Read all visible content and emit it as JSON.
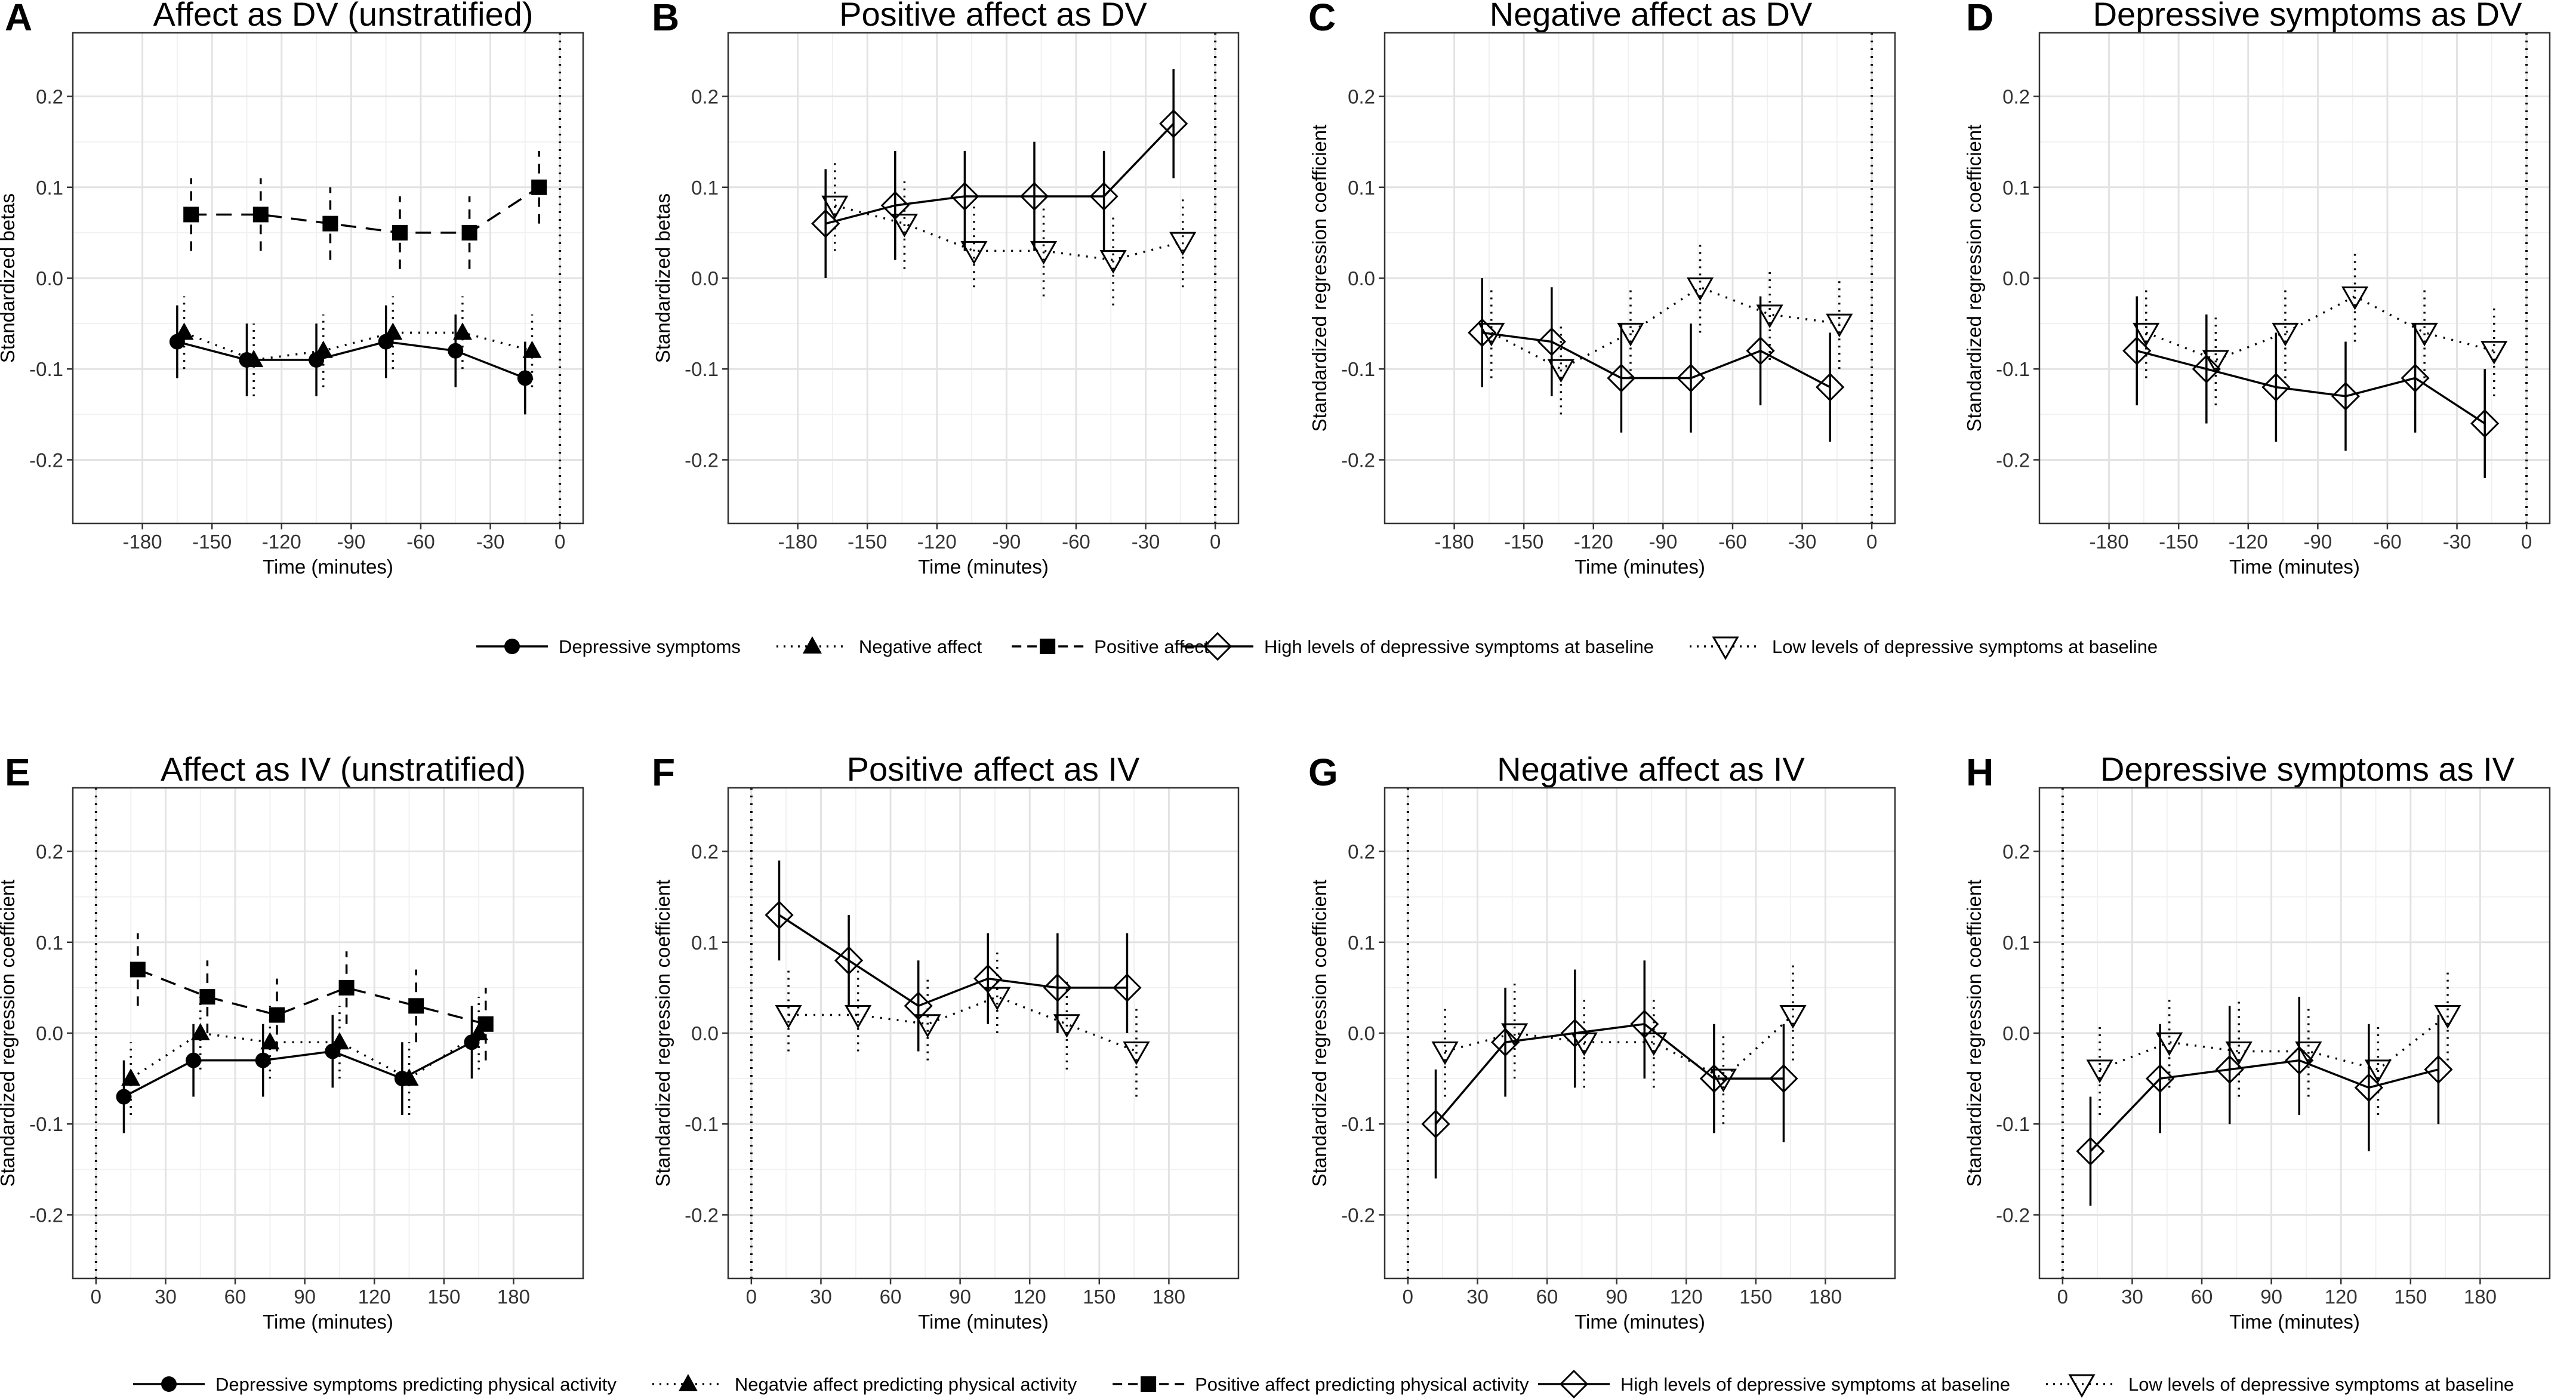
{
  "legends": {
    "top_affect": [
      {
        "label": "Depressive symptoms",
        "marker": "circle",
        "line": "solid"
      },
      {
        "label": "Negative affect",
        "marker": "triangle",
        "line": "dotted"
      },
      {
        "label": "Positive affect",
        "marker": "square",
        "line": "dashed"
      }
    ],
    "top_group": [
      {
        "label": "High levels of depressive symptoms at baseline",
        "marker": "diamond",
        "line": "solid"
      },
      {
        "label": "Low levels of depressive symptoms at baseline",
        "marker": "down-triangle",
        "line": "dotted"
      }
    ],
    "bottom_affect": [
      {
        "label": "Depressive symptoms predicting physical activity",
        "marker": "circle",
        "line": "solid"
      },
      {
        "label": "Negatvie affect predicting physical activity",
        "marker": "triangle",
        "line": "dotted"
      },
      {
        "label": "Positive affect predicting physical activity",
        "marker": "square",
        "line": "dashed"
      }
    ],
    "bottom_group": [
      {
        "label": "High levels of depressive symptoms at baseline",
        "marker": "diamond",
        "line": "solid"
      },
      {
        "label": "Low levels of depressive symptoms at baseline",
        "marker": "down-triangle",
        "line": "dotted"
      }
    ]
  },
  "chart_data": [
    {
      "panel": "A",
      "type": "line",
      "title": "Affect as DV (unstratified)",
      "xlabel": "Time (minutes)",
      "ylabel": "Standardized betas",
      "xlim": [
        -210,
        10
      ],
      "ylim": [
        -0.27,
        0.27
      ],
      "xticks": [
        -180,
        -150,
        -120,
        -90,
        -60,
        -30,
        0
      ],
      "yticks": [
        -0.2,
        -0.1,
        0.0,
        0.1,
        0.2
      ],
      "tick_labels_y": [
        "-0.2",
        "-0.1",
        "0.0",
        "0.1",
        "0.2"
      ],
      "vline": 0,
      "series": [
        {
          "name": "Depressive symptoms",
          "marker": "circle",
          "line": "solid",
          "x": [
            -165,
            -135,
            -105,
            -75,
            -45,
            -15
          ],
          "y": [
            -0.07,
            -0.09,
            -0.09,
            -0.07,
            -0.08,
            -0.11
          ],
          "lower": [
            -0.11,
            -0.13,
            -0.13,
            -0.11,
            -0.12,
            -0.15
          ],
          "upper": [
            -0.03,
            -0.05,
            -0.05,
            -0.03,
            -0.04,
            -0.07
          ]
        },
        {
          "name": "Negative affect",
          "marker": "triangle",
          "line": "dotted",
          "x": [
            -162,
            -132,
            -102,
            -72,
            -42,
            -12
          ],
          "y": [
            -0.06,
            -0.09,
            -0.08,
            -0.06,
            -0.06,
            -0.08
          ],
          "lower": [
            -0.1,
            -0.13,
            -0.12,
            -0.1,
            -0.1,
            -0.12
          ],
          "upper": [
            -0.02,
            -0.05,
            -0.04,
            -0.02,
            -0.02,
            -0.04
          ]
        },
        {
          "name": "Positive affect",
          "marker": "square",
          "line": "dashed",
          "x": [
            -159,
            -129,
            -99,
            -69,
            -39,
            -9
          ],
          "y": [
            0.07,
            0.07,
            0.06,
            0.05,
            0.05,
            0.1
          ],
          "lower": [
            0.03,
            0.03,
            0.02,
            0.01,
            0.01,
            0.06
          ],
          "upper": [
            0.11,
            0.11,
            0.1,
            0.09,
            0.09,
            0.14
          ]
        }
      ]
    },
    {
      "panel": "B",
      "type": "line",
      "title": "Positive affect as DV",
      "xlabel": "Time (minutes)",
      "ylabel": "Standardized betas",
      "xlim": [
        -210,
        10
      ],
      "ylim": [
        -0.27,
        0.27
      ],
      "xticks": [
        -180,
        -150,
        -120,
        -90,
        -60,
        -30,
        0
      ],
      "yticks": [
        -0.2,
        -0.1,
        0.0,
        0.1,
        0.2
      ],
      "tick_labels_y": [
        "-0.2",
        "-0.1",
        "0.0",
        "0.1",
        "0.2"
      ],
      "vline": 0,
      "series": [
        {
          "name": "High levels of depressive symptoms at baseline",
          "marker": "diamond",
          "line": "solid",
          "x": [
            -168,
            -138,
            -108,
            -78,
            -48,
            -18
          ],
          "y": [
            0.06,
            0.08,
            0.09,
            0.09,
            0.09,
            0.17
          ],
          "lower": [
            0.0,
            0.02,
            0.03,
            0.03,
            0.03,
            0.11
          ],
          "upper": [
            0.12,
            0.14,
            0.14,
            0.15,
            0.14,
            0.23
          ]
        },
        {
          "name": "Low levels of depressive symptoms at baseline",
          "marker": "down-triangle",
          "line": "dotted",
          "x": [
            -164,
            -134,
            -104,
            -74,
            -44,
            -14
          ],
          "y": [
            0.08,
            0.06,
            0.03,
            0.03,
            0.02,
            0.04
          ],
          "lower": [
            0.03,
            0.01,
            -0.01,
            -0.02,
            -0.03,
            -0.01
          ],
          "upper": [
            0.13,
            0.11,
            0.08,
            0.08,
            0.07,
            0.09
          ]
        }
      ]
    },
    {
      "panel": "C",
      "type": "line",
      "title": "Negative affect as DV",
      "xlabel": "Time (minutes)",
      "ylabel": "Standardized regression coefficient",
      "xlim": [
        -210,
        10
      ],
      "ylim": [
        -0.27,
        0.27
      ],
      "xticks": [
        -180,
        -150,
        -120,
        -90,
        -60,
        -30,
        0
      ],
      "yticks": [
        -0.2,
        -0.1,
        0.0,
        0.1,
        0.2
      ],
      "tick_labels_y": [
        "-0.2",
        "-0.1",
        "0.0",
        "0.1",
        "0.2"
      ],
      "vline": 0,
      "series": [
        {
          "name": "High levels of depressive symptoms at baseline",
          "marker": "diamond",
          "line": "solid",
          "x": [
            -168,
            -138,
            -108,
            -78,
            -48,
            -18
          ],
          "y": [
            -0.06,
            -0.07,
            -0.11,
            -0.11,
            -0.08,
            -0.12
          ],
          "lower": [
            -0.12,
            -0.13,
            -0.17,
            -0.17,
            -0.14,
            -0.18
          ],
          "upper": [
            0.0,
            -0.01,
            -0.05,
            -0.05,
            -0.02,
            -0.06
          ]
        },
        {
          "name": "Low levels of depressive symptoms at baseline",
          "marker": "down-triangle",
          "line": "dotted",
          "x": [
            -164,
            -134,
            -104,
            -74,
            -44,
            -14
          ],
          "y": [
            -0.06,
            -0.1,
            -0.06,
            -0.01,
            -0.04,
            -0.05
          ],
          "lower": [
            -0.11,
            -0.15,
            -0.11,
            -0.06,
            -0.09,
            -0.1
          ],
          "upper": [
            -0.01,
            -0.05,
            -0.01,
            0.04,
            0.01,
            0.0
          ]
        }
      ]
    },
    {
      "panel": "D",
      "type": "line",
      "title": "Depressive symptoms as DV",
      "xlabel": "Time (minutes)",
      "ylabel": "Standardized regression coefficient",
      "xlim": [
        -210,
        10
      ],
      "ylim": [
        -0.27,
        0.27
      ],
      "xticks": [
        -180,
        -150,
        -120,
        -90,
        -60,
        -30,
        0
      ],
      "yticks": [
        -0.2,
        -0.1,
        0.0,
        0.1,
        0.2
      ],
      "tick_labels_y": [
        "-0.2",
        "-0.1",
        "0.0",
        "0.1",
        "0.2"
      ],
      "vline": 0,
      "series": [
        {
          "name": "High levels of depressive symptoms at baseline",
          "marker": "diamond",
          "line": "solid",
          "x": [
            -168,
            -138,
            -108,
            -78,
            -48,
            -18
          ],
          "y": [
            -0.08,
            -0.1,
            -0.12,
            -0.13,
            -0.11,
            -0.16
          ],
          "lower": [
            -0.14,
            -0.16,
            -0.18,
            -0.19,
            -0.17,
            -0.22
          ],
          "upper": [
            -0.02,
            -0.04,
            -0.06,
            -0.07,
            -0.05,
            -0.1
          ]
        },
        {
          "name": "Low levels of depressive symptoms at baseline",
          "marker": "down-triangle",
          "line": "dotted",
          "x": [
            -164,
            -134,
            -104,
            -74,
            -44,
            -14
          ],
          "y": [
            -0.06,
            -0.09,
            -0.06,
            -0.02,
            -0.06,
            -0.08
          ],
          "lower": [
            -0.11,
            -0.14,
            -0.11,
            -0.07,
            -0.11,
            -0.13
          ],
          "upper": [
            -0.01,
            -0.04,
            -0.01,
            0.03,
            -0.01,
            -0.03
          ]
        }
      ]
    },
    {
      "panel": "E",
      "type": "line",
      "title": "Affect as IV (unstratified)",
      "xlabel": "Time (minutes)",
      "ylabel": "Standardized regression coefficient",
      "xlim": [
        -10,
        210
      ],
      "ylim": [
        -0.27,
        0.27
      ],
      "xticks": [
        0,
        30,
        60,
        90,
        120,
        150,
        180
      ],
      "yticks": [
        -0.2,
        -0.1,
        0.0,
        0.1,
        0.2
      ],
      "tick_labels_y": [
        "-0.2",
        "-0.1",
        "0.0",
        "0.1",
        "0.2"
      ],
      "vline": 0,
      "series": [
        {
          "name": "Depressive symptoms predicting physical activity",
          "marker": "circle",
          "line": "solid",
          "x": [
            12,
            42,
            72,
            102,
            132,
            162
          ],
          "y": [
            -0.07,
            -0.03,
            -0.03,
            -0.02,
            -0.05,
            -0.01
          ],
          "lower": [
            -0.11,
            -0.07,
            -0.07,
            -0.06,
            -0.09,
            -0.05
          ],
          "upper": [
            -0.03,
            0.01,
            0.01,
            0.02,
            -0.01,
            0.03
          ]
        },
        {
          "name": "Negatvie affect predicting physical activity",
          "marker": "triangle",
          "line": "dotted",
          "x": [
            15,
            45,
            75,
            105,
            135,
            165
          ],
          "y": [
            -0.05,
            0.0,
            -0.01,
            -0.01,
            -0.05,
            0.0
          ],
          "lower": [
            -0.09,
            -0.04,
            -0.05,
            -0.05,
            -0.09,
            -0.04
          ],
          "upper": [
            -0.01,
            0.04,
            0.03,
            0.03,
            -0.01,
            0.04
          ]
        },
        {
          "name": "Positive affect predicting physical activity",
          "marker": "square",
          "line": "dashed",
          "x": [
            18,
            48,
            78,
            108,
            138,
            168
          ],
          "y": [
            0.07,
            0.04,
            0.02,
            0.05,
            0.03,
            0.01
          ],
          "lower": [
            0.03,
            0.0,
            -0.02,
            0.01,
            -0.01,
            -0.03
          ],
          "upper": [
            0.11,
            0.08,
            0.06,
            0.09,
            0.07,
            0.05
          ]
        }
      ]
    },
    {
      "panel": "F",
      "type": "line",
      "title": "Positive affect as IV",
      "xlabel": "Time (minutes)",
      "ylabel": "Standardized regression coefficient",
      "xlim": [
        -10,
        210
      ],
      "ylim": [
        -0.27,
        0.27
      ],
      "xticks": [
        0,
        30,
        60,
        90,
        120,
        150,
        180
      ],
      "yticks": [
        -0.2,
        -0.1,
        0.0,
        0.1,
        0.2
      ],
      "tick_labels_y": [
        "-0.2",
        "-0.1",
        "0.0",
        "0.1",
        "0.2"
      ],
      "vline": 0,
      "series": [
        {
          "name": "High levels of depressive symptoms at baseline",
          "marker": "diamond",
          "line": "solid",
          "x": [
            12,
            42,
            72,
            102,
            132,
            162
          ],
          "y": [
            0.13,
            0.08,
            0.03,
            0.06,
            0.05,
            0.05
          ],
          "lower": [
            0.08,
            0.03,
            -0.02,
            0.01,
            0.0,
            0.0
          ],
          "upper": [
            0.19,
            0.13,
            0.08,
            0.11,
            0.11,
            0.11
          ]
        },
        {
          "name": "Low levels of depressive symptoms at baseline",
          "marker": "down-triangle",
          "line": "dotted",
          "x": [
            16,
            46,
            76,
            106,
            136,
            166
          ],
          "y": [
            0.02,
            0.02,
            0.01,
            0.04,
            0.01,
            -0.02
          ],
          "lower": [
            -0.02,
            -0.02,
            -0.03,
            0.0,
            -0.04,
            -0.07
          ],
          "upper": [
            0.07,
            0.07,
            0.06,
            0.09,
            0.06,
            0.03
          ]
        }
      ]
    },
    {
      "panel": "G",
      "type": "line",
      "title": "Negative affect as IV",
      "xlabel": "Time (minutes)",
      "ylabel": "Standardized regression coefficient",
      "xlim": [
        -10,
        210
      ],
      "ylim": [
        -0.27,
        0.27
      ],
      "xticks": [
        0,
        30,
        60,
        90,
        120,
        150,
        180
      ],
      "yticks": [
        -0.2,
        -0.1,
        0.0,
        0.1,
        0.2
      ],
      "tick_labels_y": [
        "-0.2",
        "-0.1",
        "0.0",
        "0.1",
        "0.2"
      ],
      "vline": 0,
      "series": [
        {
          "name": "High levels of depressive symptoms at baseline",
          "marker": "diamond",
          "line": "solid",
          "x": [
            12,
            42,
            72,
            102,
            132,
            162
          ],
          "y": [
            -0.1,
            -0.01,
            0.0,
            0.01,
            -0.05,
            -0.05
          ],
          "lower": [
            -0.16,
            -0.07,
            -0.06,
            -0.05,
            -0.11,
            -0.12
          ],
          "upper": [
            -0.04,
            0.05,
            0.07,
            0.08,
            0.01,
            0.01
          ]
        },
        {
          "name": "Low levels of depressive symptoms at baseline",
          "marker": "down-triangle",
          "line": "dotted",
          "x": [
            16,
            46,
            76,
            106,
            136,
            166
          ],
          "y": [
            -0.02,
            0.0,
            -0.01,
            -0.01,
            -0.05,
            0.02
          ],
          "lower": [
            -0.07,
            -0.05,
            -0.06,
            -0.06,
            -0.1,
            -0.03
          ],
          "upper": [
            0.03,
            0.06,
            0.04,
            0.04,
            0.0,
            0.08
          ]
        }
      ]
    },
    {
      "panel": "H",
      "type": "line",
      "title": "Depressive symptoms as IV",
      "xlabel": "Time (minutes)",
      "ylabel": "Standardized regression coefficient",
      "xlim": [
        -10,
        210
      ],
      "ylim": [
        -0.27,
        0.27
      ],
      "xticks": [
        0,
        30,
        60,
        90,
        120,
        150,
        180
      ],
      "yticks": [
        -0.2,
        -0.1,
        0.0,
        0.1,
        0.2
      ],
      "tick_labels_y": [
        "-0.2",
        "-0.1",
        "0.0",
        "0.1",
        "0.2"
      ],
      "vline": 0,
      "series": [
        {
          "name": "High levels of depressive symptoms at baseline",
          "marker": "diamond",
          "line": "solid",
          "x": [
            12,
            42,
            72,
            102,
            132,
            162
          ],
          "y": [
            -0.13,
            -0.05,
            -0.04,
            -0.03,
            -0.06,
            -0.04
          ],
          "lower": [
            -0.19,
            -0.11,
            -0.1,
            -0.09,
            -0.13,
            -0.1
          ],
          "upper": [
            -0.07,
            0.01,
            0.03,
            0.04,
            0.01,
            0.02
          ]
        },
        {
          "name": "Low levels of depressive symptoms at baseline",
          "marker": "down-triangle",
          "line": "dotted",
          "x": [
            16,
            46,
            76,
            106,
            136,
            166
          ],
          "y": [
            -0.04,
            -0.01,
            -0.02,
            -0.02,
            -0.04,
            0.02
          ],
          "lower": [
            -0.09,
            -0.06,
            -0.07,
            -0.07,
            -0.09,
            -0.03
          ],
          "upper": [
            0.01,
            0.04,
            0.04,
            0.03,
            0.01,
            0.07
          ]
        }
      ]
    }
  ]
}
